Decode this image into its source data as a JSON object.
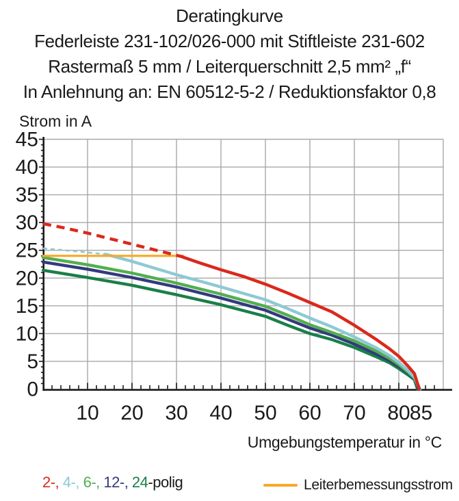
{
  "header": {
    "lines": [
      "Deratingkurve",
      "Federleiste 231-102/026-000 mit Stiftleiste 231-602",
      "Rastermaß 5 mm / Leiterquerschnitt 2,5 mm² „f“",
      "In Anlehnung an: EN 60512-5-2 / Reduktionsfaktor 0,8"
    ]
  },
  "axes": {
    "y_label": "Strom in A",
    "x_label": "Umgebungstemperatur in °C"
  },
  "legend": {
    "poles_parts": [
      {
        "text": "2-, ",
        "color": "#da291c"
      },
      {
        "text": "4-, ",
        "color": "#8ec9d4"
      },
      {
        "text": "6-, ",
        "color": "#53ae4f"
      },
      {
        "text": "12-, ",
        "color": "#323a7e"
      },
      {
        "text": "24",
        "color": "#1a7f48"
      },
      {
        "text": "-polig",
        "color": "#1a1a1a"
      }
    ],
    "rated_label": "Leiterbemessungsstrom",
    "rated_color": "#f7a823"
  },
  "chart_data": {
    "type": "line",
    "title": "Deratingkurve",
    "xlabel": "Umgebungstemperatur in °C",
    "ylabel": "Strom in A",
    "xlim": [
      0,
      90
    ],
    "ylim": [
      0,
      45
    ],
    "x_major_ticks": [
      10,
      20,
      30,
      40,
      50,
      60,
      70,
      80,
      85
    ],
    "y_major_ticks": [
      0,
      5,
      10,
      15,
      20,
      25,
      30,
      35,
      40,
      45
    ],
    "x_minor_step": 2,
    "y_minor_step": 1,
    "grid": true,
    "grid_color": "#a8a8a8",
    "axis_color": "#1a1a1a",
    "legend_position": "bottom",
    "rated_current_a": 24,
    "series": [
      {
        "name": "24-polig",
        "color": "#1a7f48",
        "width": 4.4,
        "points": [
          [
            0,
            21.4
          ],
          [
            10,
            20.1
          ],
          [
            20,
            18.7
          ],
          [
            30,
            17.0
          ],
          [
            40,
            15.2
          ],
          [
            50,
            13.1
          ],
          [
            55,
            11.5
          ],
          [
            60,
            10.0
          ],
          [
            65,
            8.9
          ],
          [
            70,
            7.5
          ],
          [
            75,
            5.8
          ],
          [
            78,
            4.7
          ],
          [
            80,
            3.7
          ],
          [
            82,
            2.6
          ],
          [
            83.5,
            1.7
          ],
          [
            84.2,
            0
          ]
        ]
      },
      {
        "name": "12-polig",
        "color": "#323a7e",
        "width": 4.4,
        "points": [
          [
            0,
            22.9
          ],
          [
            10,
            21.6
          ],
          [
            20,
            20.1
          ],
          [
            30,
            18.4
          ],
          [
            40,
            16.4
          ],
          [
            50,
            14.2
          ],
          [
            55,
            12.6
          ],
          [
            60,
            11.0
          ],
          [
            65,
            9.7
          ],
          [
            70,
            8.1
          ],
          [
            75,
            6.3
          ],
          [
            78,
            5.1
          ],
          [
            80,
            4.1
          ],
          [
            82,
            2.9
          ],
          [
            83.5,
            1.9
          ],
          [
            84.4,
            0
          ]
        ]
      },
      {
        "name": "6-polig",
        "color": "#53ae4f",
        "width": 4.4,
        "points": [
          [
            0,
            23.7
          ],
          [
            10,
            22.4
          ],
          [
            20,
            20.9
          ],
          [
            30,
            19.1
          ],
          [
            40,
            17.1
          ],
          [
            50,
            14.9
          ],
          [
            55,
            13.3
          ],
          [
            60,
            11.6
          ],
          [
            65,
            10.2
          ],
          [
            70,
            8.7
          ],
          [
            75,
            6.8
          ],
          [
            78,
            5.5
          ],
          [
            80,
            4.4
          ],
          [
            82,
            3.1
          ],
          [
            83.5,
            2.0
          ],
          [
            84.6,
            0
          ]
        ]
      },
      {
        "name": "4-polig",
        "color": "#8ec9d4",
        "width": 4.4,
        "dash_until": 14,
        "dash": "6 5",
        "dash_width": 2.6,
        "points": [
          [
            0,
            25.35
          ],
          [
            7,
            24.85
          ],
          [
            14,
            24.3
          ],
          [
            20,
            23.0
          ],
          [
            30,
            20.6
          ],
          [
            40,
            18.4
          ],
          [
            50,
            16.1
          ],
          [
            55,
            14.5
          ],
          [
            60,
            12.8
          ],
          [
            65,
            11.2
          ],
          [
            70,
            9.4
          ],
          [
            75,
            7.4
          ],
          [
            78,
            6.0
          ],
          [
            80,
            4.8
          ],
          [
            82,
            3.4
          ],
          [
            83.5,
            2.2
          ],
          [
            84.8,
            0
          ]
        ]
      },
      {
        "name": "Leiterbemessungsstrom",
        "color": "#f7a823",
        "width": 3.2,
        "points": [
          [
            0,
            24
          ],
          [
            31.5,
            24
          ]
        ]
      },
      {
        "name": "2-polig",
        "color": "#da291c",
        "width": 4.5,
        "dash_until": 31,
        "dash": "12 8",
        "dash_width": 4.5,
        "points": [
          [
            0,
            29.8
          ],
          [
            5,
            29.0
          ],
          [
            10,
            28.1
          ],
          [
            15,
            27.1
          ],
          [
            20,
            26.1
          ],
          [
            25,
            25.1
          ],
          [
            31,
            23.9
          ],
          [
            35,
            22.8
          ],
          [
            40,
            21.5
          ],
          [
            45,
            20.3
          ],
          [
            50,
            18.9
          ],
          [
            55,
            17.3
          ],
          [
            60,
            15.6
          ],
          [
            65,
            13.9
          ],
          [
            70,
            11.5
          ],
          [
            75,
            8.9
          ],
          [
            78,
            7.2
          ],
          [
            80,
            5.9
          ],
          [
            82,
            4.2
          ],
          [
            83.5,
            2.8
          ],
          [
            84.6,
            0
          ]
        ]
      }
    ]
  }
}
